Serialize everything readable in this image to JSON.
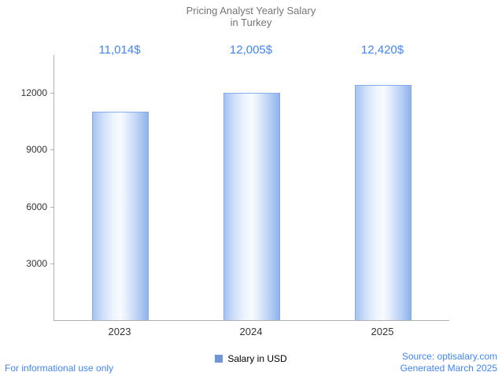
{
  "title": {
    "line1": "Pricing Analyst Yearly Salary",
    "line2": "in Turkey"
  },
  "chart_data": {
    "type": "bar",
    "title": "Pricing Analyst Yearly Salary in Turkey",
    "categories": [
      "2023",
      "2024",
      "2025"
    ],
    "values": [
      11014,
      12005,
      12420
    ],
    "value_labels": [
      "11,014$",
      "12,005$",
      "12,420$"
    ],
    "series": [
      {
        "name": "Salary in USD",
        "values": [
          11014,
          12005,
          12420
        ]
      }
    ],
    "xlabel": "",
    "ylabel": "",
    "ylim": [
      0,
      14000
    ],
    "yticks": [
      3000,
      6000,
      9000,
      12000
    ],
    "grid": false,
    "legend_position": "bottom",
    "colors": {
      "bar_edge": "#86abe9",
      "bar_fill_light": "#f8fbff",
      "bar_fill_dark": "#8fb3ec",
      "value_label": "#4285f4",
      "axis": "#b0b0b0",
      "title": "#757575",
      "link": "#4285f4",
      "legend_swatch": "#6e96d9"
    }
  },
  "legend": {
    "label": "Salary in USD"
  },
  "footer": {
    "left": "For informational use only",
    "source": "Source: optisalary.com",
    "generated": "Generated March 2025"
  }
}
